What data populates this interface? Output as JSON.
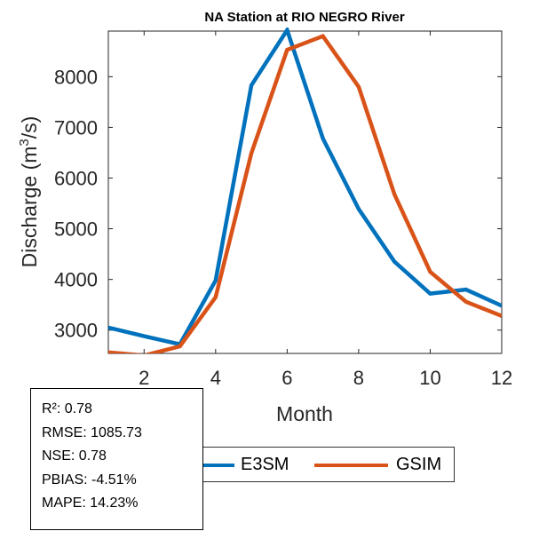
{
  "chart_data": {
    "type": "line",
    "title": "NA  Station at  RIO NEGRO  River",
    "xlabel": "Month",
    "ylabel": "Discharge (m",
    "ylabel_sup": "3",
    "ylabel_tail": "/s)",
    "xlim": [
      1,
      12
    ],
    "ylim": [
      2540,
      8900
    ],
    "xticks": [
      2,
      4,
      6,
      8,
      10,
      12
    ],
    "yticks": [
      3000,
      4000,
      5000,
      6000,
      7000,
      8000
    ],
    "grid": false,
    "x": [
      1,
      2,
      3,
      4,
      5,
      6,
      7,
      8,
      9,
      10,
      11,
      12
    ],
    "series": [
      {
        "name": "E3SM",
        "color": "#0072BD",
        "values": [
          3050,
          2880,
          2720,
          3980,
          7830,
          8920,
          6780,
          5390,
          4350,
          3720,
          3800,
          3480
        ]
      },
      {
        "name": "GSIM",
        "color": "#D95319",
        "values": [
          2560,
          2500,
          2680,
          3650,
          6490,
          8530,
          8800,
          7800,
          5680,
          4150,
          3560,
          3280
        ]
      }
    ],
    "legend_position": "bottom"
  },
  "stats": [
    "R²: 0.78",
    "RMSE: 1085.73",
    "NSE: 0.78",
    "PBIAS: -4.51%",
    "MAPE: 14.23%"
  ]
}
